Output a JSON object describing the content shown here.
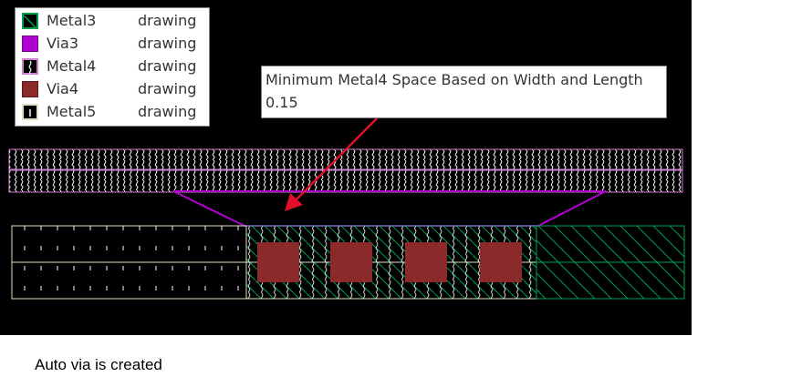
{
  "legend": {
    "items": [
      {
        "layer": "Metal3",
        "purpose": "drawing",
        "icon": "metal3-swatch-icon",
        "color": "#00a050"
      },
      {
        "layer": "Via3",
        "purpose": "drawing",
        "icon": "via3-swatch-icon",
        "color": "#b000d0"
      },
      {
        "layer": "Metal4",
        "purpose": "drawing",
        "icon": "metal4-swatch-icon",
        "color": "#d080d0"
      },
      {
        "layer": "Via4",
        "purpose": "drawing",
        "icon": "via4-swatch-icon",
        "color": "#8b2a2a"
      },
      {
        "layer": "Metal5",
        "purpose": "drawing",
        "icon": "metal5-swatch-icon",
        "color": "#e0e0c0"
      }
    ]
  },
  "callout": {
    "title": "Minimum Metal4 Space Based on Width and Length",
    "value": "0.15"
  },
  "caption": "Auto via is created",
  "colors": {
    "background": "#000000",
    "metal3": "#00a050",
    "metal4": "#d080d0",
    "via3": "#b000d0",
    "via4": "#8b2a2a",
    "metal5": "#e0e0c0",
    "arrow": "#e0102a"
  }
}
